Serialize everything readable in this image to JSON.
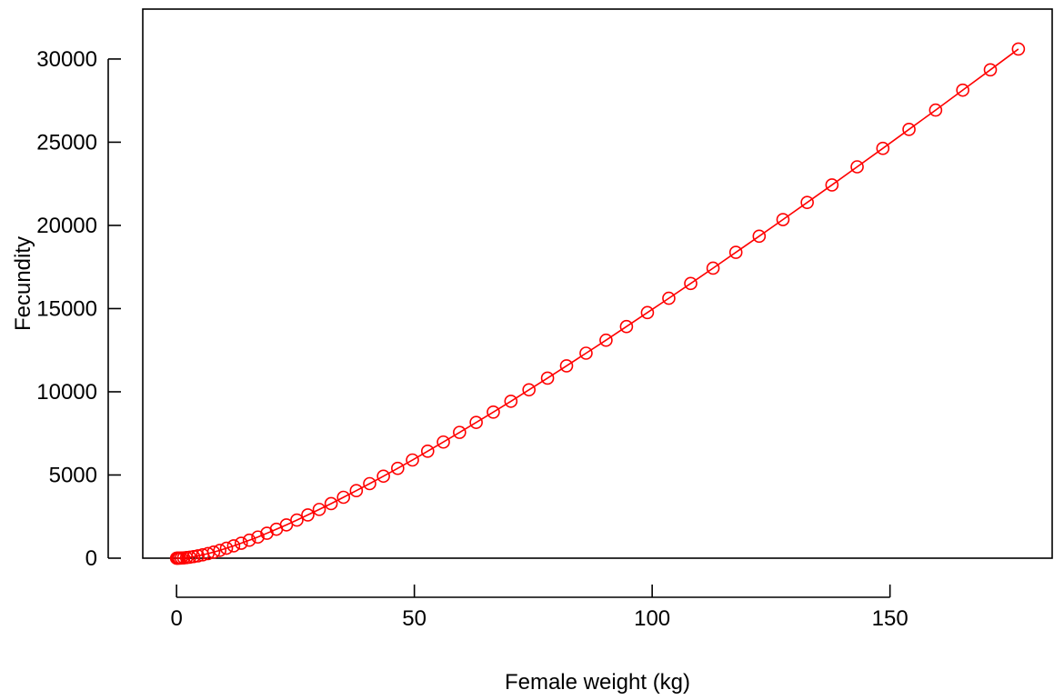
{
  "chart_data": {
    "type": "line",
    "title": "",
    "xlabel": "Female weight (kg)",
    "ylabel": "Fecundity",
    "xlim": [
      -7.1,
      184.1
    ],
    "ylim": [
      0,
      33000
    ],
    "xticks": [
      0,
      50,
      100,
      150
    ],
    "yticks": [
      0,
      5000,
      10000,
      15000,
      20000,
      25000,
      30000
    ],
    "grid": false,
    "legend": "none",
    "series": [
      {
        "color": "#ff0000",
        "marker": "open-circle",
        "x": [
          0,
          0.1,
          0.3,
          0.6,
          1.0,
          1.5,
          2.1,
          2.8,
          3.6,
          4.5,
          5.5,
          6.6,
          7.8,
          9.1,
          10.5,
          12.0,
          13.6,
          15.3,
          17.1,
          19.0,
          21.0,
          23.1,
          25.3,
          27.6,
          30.0,
          32.5,
          35.1,
          37.8,
          40.6,
          43.5,
          46.5,
          49.6,
          52.8,
          56.1,
          59.5,
          63.0,
          66.6,
          70.3,
          74.1,
          78.0,
          82.0,
          86.1,
          90.3,
          94.6,
          99.0,
          103.5,
          108.1,
          112.8,
          117.6,
          122.5,
          127.5,
          132.6,
          137.8,
          143.1,
          148.5,
          154.0,
          159.6,
          165.3,
          171.1,
          177.0
        ],
        "y": [
          0,
          0.1,
          1,
          3,
          8,
          18,
          35,
          60,
          95,
          140,
          200,
          275,
          365,
          470,
          600,
          740,
          900,
          1080,
          1270,
          1500,
          1740,
          2000,
          2290,
          2600,
          2930,
          3280,
          3660,
          4060,
          4480,
          4930,
          5400,
          5900,
          6430,
          6980,
          7560,
          8160,
          8780,
          9430,
          10120,
          10820,
          11560,
          12320,
          13100,
          13920,
          14760,
          15620,
          16510,
          17430,
          18380,
          19350,
          20350,
          21380,
          22430,
          23520,
          24630,
          25770,
          26930,
          28130,
          29350,
          30600
        ]
      }
    ]
  }
}
